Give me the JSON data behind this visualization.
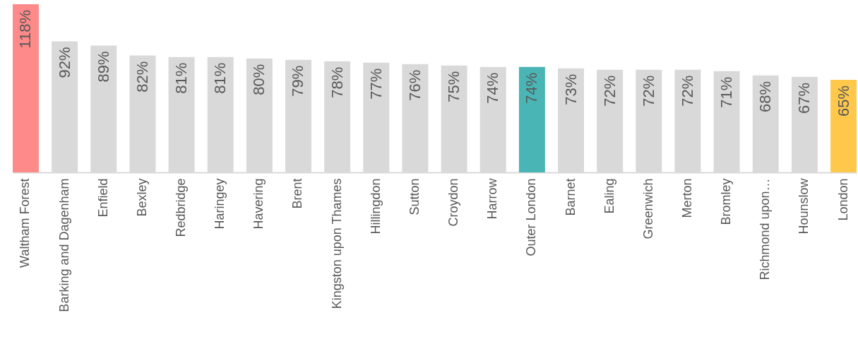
{
  "chart_data": {
    "type": "bar",
    "categories": [
      "Waltham Forest",
      "Barking and Dagenham",
      "Enfield",
      "Bexley",
      "Redbridge",
      "Haringey",
      "Havering",
      "Brent",
      "Kingston upon Thames",
      "Hillingdon",
      "Sutton",
      "Croydon",
      "Harrow",
      "Outer London",
      "Barnet",
      "Ealing",
      "Greenwich",
      "Merton",
      "Bromley",
      "Richmond upon…",
      "Hounslow",
      "London"
    ],
    "values": [
      118,
      92,
      89,
      82,
      81,
      81,
      80,
      79,
      78,
      77,
      76,
      75,
      74,
      74,
      73,
      72,
      72,
      72,
      71,
      68,
      67,
      65
    ],
    "colors": [
      "#ff8a8a",
      "#d9d9d9",
      "#d9d9d9",
      "#d9d9d9",
      "#d9d9d9",
      "#d9d9d9",
      "#d9d9d9",
      "#d9d9d9",
      "#d9d9d9",
      "#d9d9d9",
      "#d9d9d9",
      "#d9d9d9",
      "#d9d9d9",
      "#4ab5b5",
      "#d9d9d9",
      "#d9d9d9",
      "#d9d9d9",
      "#d9d9d9",
      "#d9d9d9",
      "#d9d9d9",
      "#d9d9d9",
      "#ffc84a"
    ],
    "value_labels": [
      "118%",
      "92%",
      "89%",
      "82%",
      "81%",
      "81%",
      "80%",
      "79%",
      "78%",
      "77%",
      "76%",
      "75%",
      "74%",
      "74%",
      "73%",
      "72%",
      "72%",
      "72%",
      "71%",
      "68%",
      "67%",
      "65%"
    ],
    "grid": false,
    "legend": false
  }
}
